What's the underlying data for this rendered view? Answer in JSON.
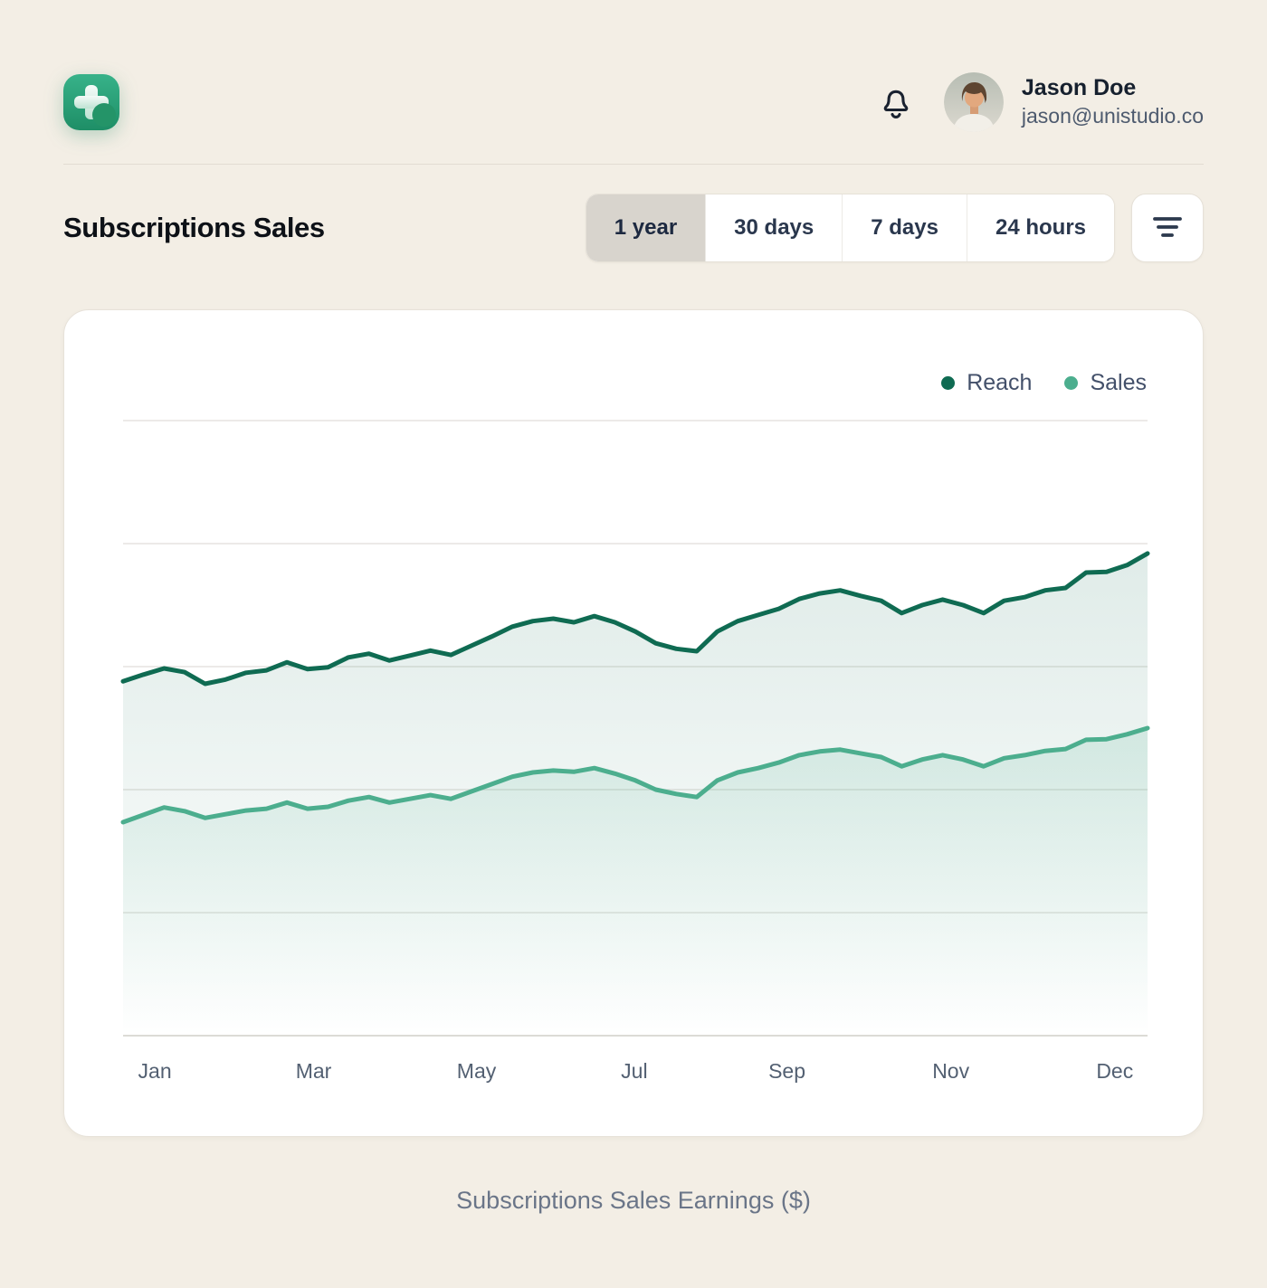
{
  "header": {
    "logo_icon": "plus-icon",
    "bell_icon": "bell-icon",
    "user": {
      "name": "Jason Doe",
      "email": "jason@unistudio.co",
      "avatar_icon": "user-photo-avatar"
    }
  },
  "toolbar": {
    "title": "Subscriptions Sales",
    "ranges": [
      {
        "label": "1 year",
        "selected": true
      },
      {
        "label": "30 days",
        "selected": false
      },
      {
        "label": "7 days",
        "selected": false
      },
      {
        "label": "24 hours",
        "selected": false
      }
    ],
    "filter_icon": "filter-lines-icon"
  },
  "colors": {
    "brand_green": "#259a70",
    "reach_line": "#0f6b52",
    "sales_line": "#4cae8e",
    "selected_tab_bg": "#d8d4cd",
    "page_bg": "#f3eee5"
  },
  "chart_data": {
    "type": "line",
    "title": "Subscriptions Sales",
    "caption": "Subscriptions Sales Earnings ($)",
    "xlabel": "",
    "ylabel": "",
    "ylim": [
      0,
      100
    ],
    "gridlines": [
      0,
      20,
      40,
      60,
      80,
      100
    ],
    "grid": "horizontal-only",
    "legend": {
      "position": "top-right",
      "entries": [
        {
          "name": "Reach",
          "color": "#0f6b52"
        },
        {
          "name": "Sales",
          "color": "#4cae8e"
        }
      ]
    },
    "x_axis": {
      "tick_labels": [
        "Jan",
        "Mar",
        "May",
        "Jul",
        "Sep",
        "Nov",
        "Dec"
      ],
      "tick_positions_pct": [
        3.1,
        18.6,
        34.5,
        49.9,
        64.8,
        80.8,
        96.8
      ]
    },
    "series": [
      {
        "name": "Reach",
        "color": "#0f6b52",
        "fill_opacity": 0.13,
        "values": [
          57.6,
          58.7,
          59.7,
          59.1,
          57.2,
          57.9,
          59.0,
          59.4,
          60.7,
          59.6,
          59.9,
          61.5,
          62.1,
          61.0,
          61.8,
          62.6,
          61.9,
          63.4,
          64.9,
          66.5,
          67.4,
          67.8,
          67.2,
          68.2,
          67.2,
          65.7,
          63.8,
          62.9,
          62.5,
          65.7,
          67.4,
          68.4,
          69.4,
          71.0,
          71.9,
          72.4,
          71.5,
          70.7,
          68.7,
          70.0,
          70.9,
          70.0,
          68.7,
          70.7,
          71.3,
          72.4,
          72.8,
          75.3,
          75.4,
          76.5,
          78.4
        ]
      },
      {
        "name": "Sales",
        "color": "#4cae8e",
        "fill_opacity": 0.16,
        "values": [
          34.7,
          35.9,
          37.1,
          36.5,
          35.4,
          36.0,
          36.6,
          36.9,
          37.9,
          36.9,
          37.2,
          38.2,
          38.8,
          37.9,
          38.5,
          39.1,
          38.5,
          39.7,
          40.9,
          42.1,
          42.8,
          43.1,
          42.9,
          43.5,
          42.6,
          41.5,
          40.0,
          39.3,
          38.8,
          41.5,
          42.8,
          43.5,
          44.4,
          45.6,
          46.2,
          46.5,
          45.9,
          45.3,
          43.8,
          44.9,
          45.6,
          44.9,
          43.8,
          45.1,
          45.6,
          46.3,
          46.6,
          48.1,
          48.2,
          49.0,
          50.0
        ]
      }
    ]
  }
}
